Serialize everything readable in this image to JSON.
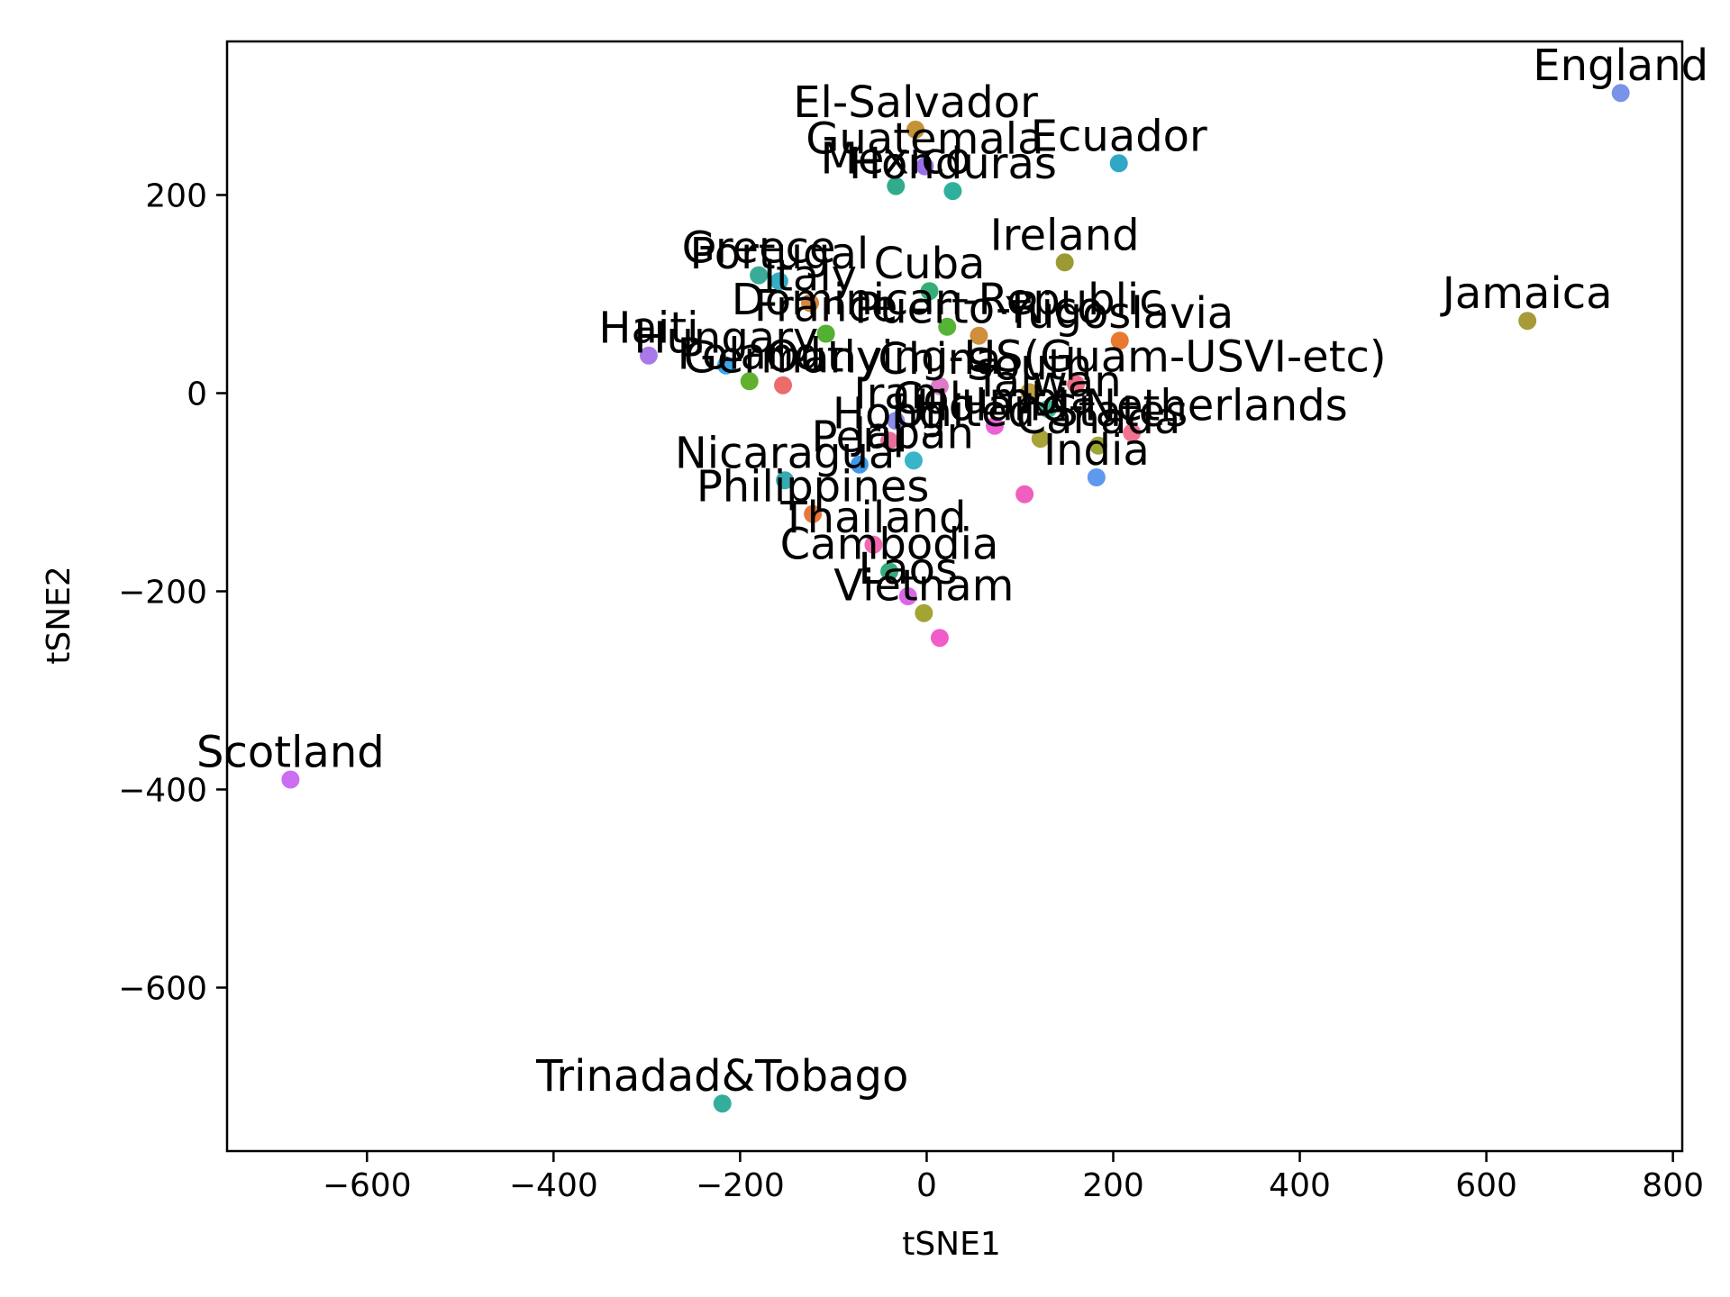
{
  "chart_data": {
    "type": "scatter",
    "title": "",
    "xlabel": "tSNE1",
    "ylabel": "tSNE2",
    "xlim": [
      -750,
      810
    ],
    "ylim": [
      -765,
      355
    ],
    "xticks": [
      -600,
      -400,
      -200,
      0,
      200,
      400,
      600,
      800
    ],
    "yticks": [
      -600,
      -400,
      -200,
      0,
      200
    ],
    "grid": false,
    "legend": false,
    "points": [
      {
        "label": "England",
        "x": 744,
        "y": 303,
        "color": "#7a93e8"
      },
      {
        "label": "El-Salvador",
        "x": -12,
        "y": 266,
        "color": "#c49235"
      },
      {
        "label": "Ecuador",
        "x": 206,
        "y": 232,
        "color": "#2fa8c6"
      },
      {
        "label": "Guatemala",
        "x": -2,
        "y": 229,
        "color": "#9a6fe8"
      },
      {
        "label": "Mexico",
        "x": -33,
        "y": 209,
        "color": "#31ab8c"
      },
      {
        "label": "Honduras",
        "x": 28,
        "y": 204,
        "color": "#2fb09d"
      },
      {
        "label": "Ireland",
        "x": 148,
        "y": 132,
        "color": "#9c9a34"
      },
      {
        "label": "Greece",
        "x": -180,
        "y": 119,
        "color": "#3aab96"
      },
      {
        "label": "Portugal",
        "x": -158,
        "y": 113,
        "color": "#35aec3"
      },
      {
        "label": "Cuba",
        "x": 3,
        "y": 103,
        "color": "#36ad78"
      },
      {
        "label": "Italy",
        "x": -125,
        "y": 91,
        "color": "#d9863a"
      },
      {
        "label": "Jamaica",
        "x": 644,
        "y": 73,
        "color": "#a89a38"
      },
      {
        "label": "Dominican-Republic",
        "x": 22,
        "y": 67,
        "color": "#55b335"
      },
      {
        "label": "Puerto-Rico",
        "x": 56,
        "y": 58,
        "color": "#cf8f3c"
      },
      {
        "label": "France",
        "x": -108,
        "y": 60,
        "color": "#53b030"
      },
      {
        "label": "Yugoslavia",
        "x": 207,
        "y": 53,
        "color": "#e8792f"
      },
      {
        "label": "Haiti",
        "x": -298,
        "y": 38,
        "color": "#a87ae8"
      },
      {
        "label": "Hungary",
        "x": -215,
        "y": 28,
        "color": "#3da6e8"
      },
      {
        "label": "Poland",
        "x": -190,
        "y": 12,
        "color": "#62b030"
      },
      {
        "label": "Germany",
        "x": -154,
        "y": 8,
        "color": "#ec6b6b"
      },
      {
        "label": "Outlying-US(Guam-USVI-etc)",
        "x": 160,
        "y": 9,
        "color": "#f06a86"
      },
      {
        "label": "South",
        "x": 110,
        "y": 1,
        "color": "#c2a040"
      },
      {
        "label": "China",
        "x": 14,
        "y": 7,
        "color": "#e07ac8"
      },
      {
        "label": "Taiwan",
        "x": 130,
        "y": -16,
        "color": "#3dba9a"
      },
      {
        "label": "Columbia",
        "x": 73,
        "y": -33,
        "color": "#ef5fd6"
      },
      {
        "label": "Holand-Netherlands",
        "x": 220,
        "y": -40,
        "color": "#f2738f"
      },
      {
        "label": "Iran",
        "x": -33,
        "y": -28,
        "color": "#8a8ee8"
      },
      {
        "label": "Hong",
        "x": -40,
        "y": -48,
        "color": "#e86f9b"
      },
      {
        "label": "United-States",
        "x": 122,
        "y": -46,
        "color": "#a8a338"
      },
      {
        "label": "Canada",
        "x": 184,
        "y": -53,
        "color": "#9ea535"
      },
      {
        "label": "Japan",
        "x": -14,
        "y": -68,
        "color": "#3ab4c9"
      },
      {
        "label": "Peru",
        "x": -72,
        "y": -72,
        "color": "#3d9ae8"
      },
      {
        "label": "India",
        "x": 182,
        "y": -85,
        "color": "#5e98ef"
      },
      {
        "label": "Nicaragua",
        "x": -152,
        "y": -88,
        "color": "#36aab0"
      },
      {
        "label": "",
        "x": 105,
        "y": -102,
        "color": "#ef5fbf"
      },
      {
        "label": "Philippines",
        "x": -122,
        "y": -122,
        "color": "#e8763c"
      },
      {
        "label": "Thailand",
        "x": -57,
        "y": -153,
        "color": "#f268b0"
      },
      {
        "label": "Cambodia",
        "x": -40,
        "y": -180,
        "color": "#36ab7c"
      },
      {
        "label": "Laos",
        "x": -20,
        "y": -205,
        "color": "#d967e8"
      },
      {
        "label": "Vietnam",
        "x": -3,
        "y": -222,
        "color": "#a2a434"
      },
      {
        "label": "",
        "x": 14,
        "y": -247,
        "color": "#f25cc8"
      },
      {
        "label": "Scotland",
        "x": -682,
        "y": -390,
        "color": "#cc6ef0"
      },
      {
        "label": "Trinadad&Tobago",
        "x": -219,
        "y": -717,
        "color": "#33ad9c"
      }
    ]
  }
}
